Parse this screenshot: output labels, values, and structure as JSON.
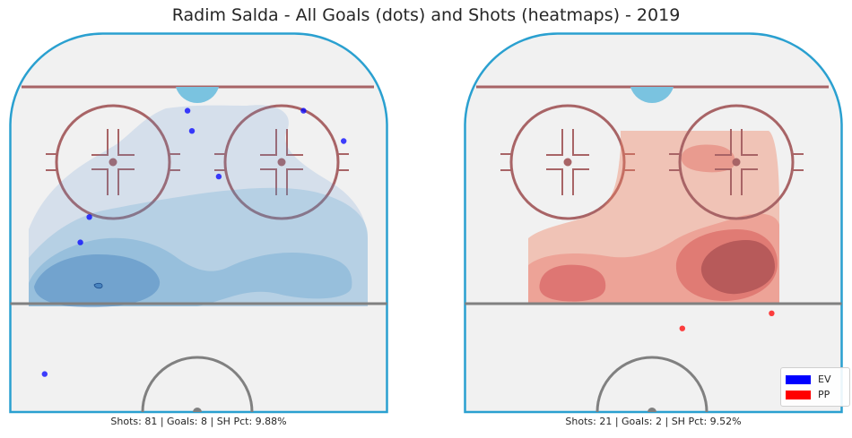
{
  "title": "Radim Salda - All Goals (dots) and Shots (heatmaps) - 2019",
  "colors": {
    "ev": "#0000ff",
    "pp": "#ff0000",
    "rink_boards": "#2aa0d0",
    "ice": "#f1f1f1",
    "red_line": "#a05a5a"
  },
  "legend": [
    {
      "label": "EV",
      "color": "#0000ff"
    },
    {
      "label": "PP",
      "color": "#ff0000"
    }
  ],
  "chart_data": [
    {
      "type": "heatmap",
      "strength": "EV",
      "caption": "Shots: 81 | Goals: 8 | SH Pct: 9.88%",
      "stats": {
        "shots": 81,
        "goals": 8,
        "sh_pct": 9.88
      },
      "x_range": [
        -42.5,
        42.5
      ],
      "y_range": [
        25,
        100
      ],
      "goals": [
        {
          "x": -2.5,
          "y": 84.5
        },
        {
          "x": 4.5,
          "y": 71.5
        },
        {
          "x": 23.5,
          "y": 84.5
        },
        {
          "x": -1.5,
          "y": 80.5
        },
        {
          "x": 32.5,
          "y": 78.5
        },
        {
          "x": -24.5,
          "y": 63.5
        },
        {
          "x": -26.5,
          "y": 58.5
        },
        {
          "x": -34.5,
          "y": 32.5
        }
      ]
    },
    {
      "type": "heatmap",
      "strength": "PP",
      "caption": "Shots: 21 | Goals: 2 | SH Pct: 9.52%",
      "stats": {
        "shots": 21,
        "goals": 2,
        "sh_pct": 9.52
      },
      "x_range": [
        -42.5,
        42.5
      ],
      "y_range": [
        25,
        100
      ],
      "goals": [
        {
          "x": 26.5,
          "y": 44.5
        },
        {
          "x": 6.5,
          "y": 41.5
        }
      ]
    }
  ]
}
